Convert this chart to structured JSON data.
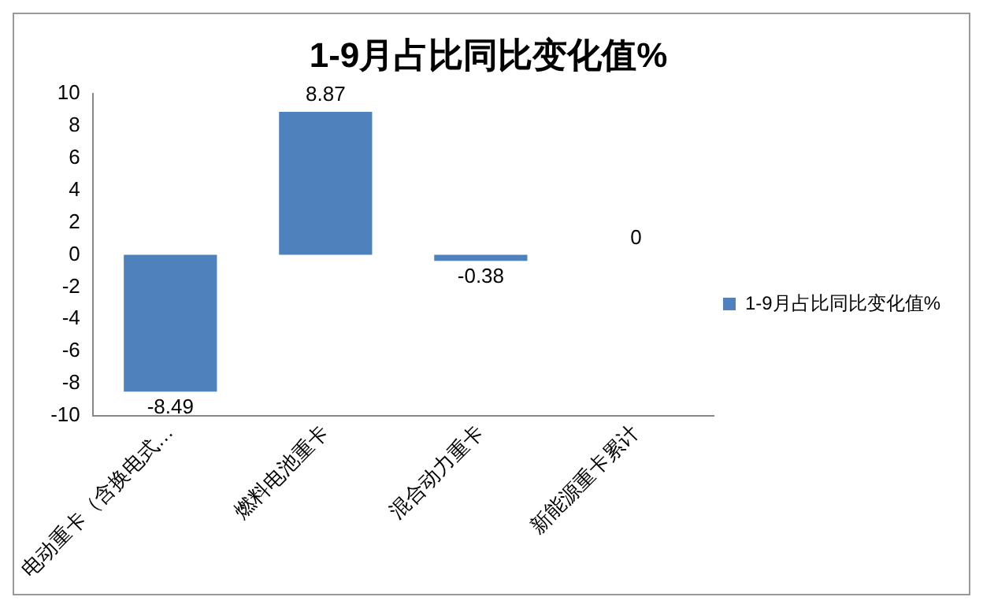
{
  "chart_data": {
    "type": "bar",
    "title": "1-9月占比同比变化值%",
    "categories": [
      "电动重卡（含换电式…",
      "燃料电池重卡",
      "混合动力重卡",
      "新能源重卡累计"
    ],
    "series": [
      {
        "name": "1-9月占比同比变化值%",
        "color": "#4f81bd",
        "values": [
          -8.49,
          8.87,
          -0.38,
          0
        ]
      }
    ],
    "ylim": [
      -10,
      10
    ],
    "yticks": [
      -10,
      -8,
      -6,
      -4,
      -2,
      0,
      2,
      4,
      6,
      8,
      10
    ],
    "grid": false,
    "legend": "right",
    "data_labels": true
  }
}
